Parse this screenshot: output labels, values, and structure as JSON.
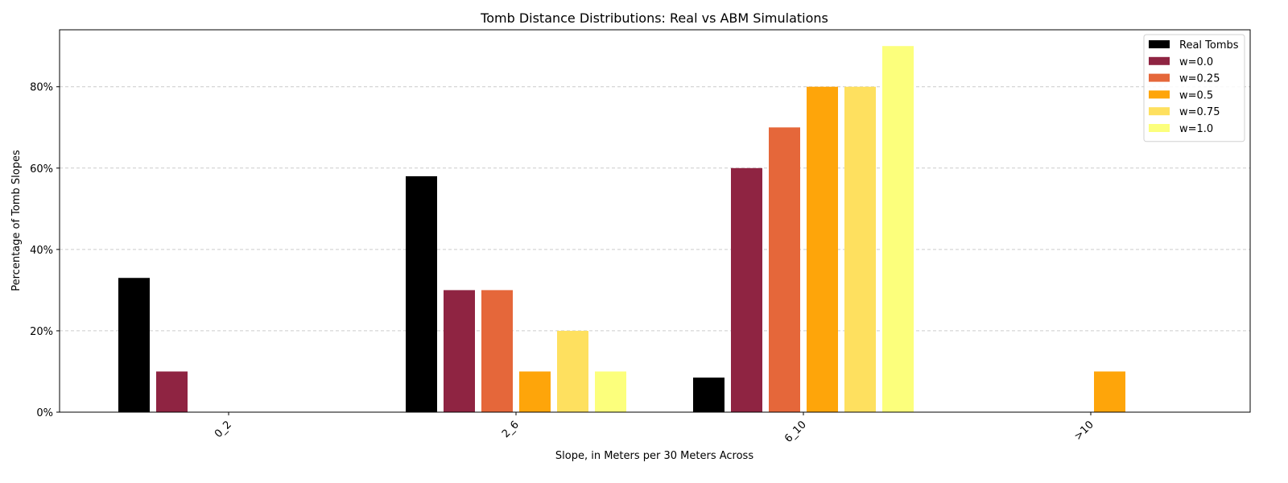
{
  "chart_data": {
    "type": "bar",
    "title": "Tomb Distance Distributions: Real vs ABM Simulations",
    "xlabel": "Slope, in Meters per 30 Meters Across",
    "ylabel": "Percentage of Tomb Slopes",
    "categories": [
      "0_2",
      "2_6",
      "6_10",
      ">10"
    ],
    "ylim": [
      0,
      94
    ],
    "yticks": [
      0,
      20,
      40,
      60,
      80
    ],
    "ytick_labels": [
      "0%",
      "20%",
      "40%",
      "60%",
      "80%"
    ],
    "grid": "y-dashed",
    "legend_position": "top-right",
    "series": [
      {
        "name": "Real Tombs",
        "color": "#000000",
        "values": [
          33,
          58,
          8.5,
          0
        ]
      },
      {
        "name": "w=0.0",
        "color": "#8f2442",
        "values": [
          10,
          30,
          60,
          0
        ]
      },
      {
        "name": "w=0.25",
        "color": "#e5673a",
        "values": [
          0,
          30,
          70,
          0
        ]
      },
      {
        "name": "w=0.5",
        "color": "#fea50a",
        "values": [
          0,
          10,
          80,
          10
        ]
      },
      {
        "name": "w=0.75",
        "color": "#fee05f",
        "values": [
          0,
          20,
          80,
          0
        ]
      },
      {
        "name": "w=1.0",
        "color": "#fcff7c",
        "values": [
          0,
          10,
          90,
          0
        ]
      }
    ]
  }
}
